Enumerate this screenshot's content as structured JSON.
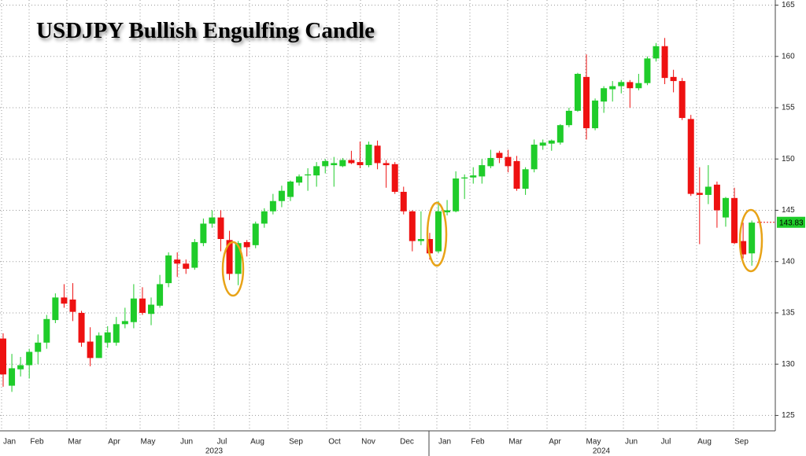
{
  "chart_data": {
    "type": "candlestick",
    "title": "USDJPY Bullish Engulfing Candle",
    "categories": [
      "Jan",
      "Feb",
      "Mar",
      "Apr",
      "May",
      "Jun",
      "Jul",
      "Aug",
      "Sep",
      "Oct",
      "Nov",
      "Dec",
      "Jan",
      "Feb",
      "Mar",
      "Apr",
      "May",
      "Jun",
      "Jul",
      "Aug",
      "Sep"
    ],
    "years": [
      "2023",
      "2024"
    ],
    "up_color": "#1fcc2a",
    "down_color": "#ee1111",
    "ylim": [
      123.5,
      165.5
    ],
    "yticks": [
      125,
      130,
      135,
      140,
      145,
      150,
      155,
      160,
      165
    ],
    "grid": true,
    "last_price": 143.83,
    "open": [
      132.5,
      127.9,
      129.5,
      129.9,
      131.2,
      132.1,
      134.3,
      136.5,
      136.3,
      135.0,
      132.2,
      130.6,
      132.1,
      132.1,
      133.9,
      134.1,
      136.4,
      134.9,
      135.7,
      137.9,
      140.2,
      139.8,
      139.4,
      141.8,
      143.7,
      144.3,
      142.1,
      138.8,
      141.9,
      141.6,
      143.7,
      144.9,
      145.9,
      146.3,
      147.7,
      148.4,
      148.4,
      149.3,
      149.4,
      149.3,
      149.9,
      149.7,
      149.4,
      151.3,
      149.6,
      149.5,
      146.8,
      144.9,
      142.0,
      142.2,
      141.0,
      144.8,
      144.9,
      148.1,
      148.2,
      148.3,
      149.3,
      150.6,
      150.2,
      149.8,
      147.1,
      149.0,
      151.3,
      151.5,
      151.6,
      153.3,
      154.7,
      158.0,
      153.0,
      155.6,
      156.8,
      157.1,
      157.5,
      156.9,
      157.4,
      159.8,
      161.0,
      158.0,
      157.6,
      153.9,
      146.7,
      146.5,
      147.5,
      144.3,
      146.2,
      142.0,
      140.8
    ],
    "high": [
      133.0,
      131.0,
      130.7,
      131.5,
      132.9,
      134.8,
      136.9,
      137.8,
      137.9,
      135.2,
      133.6,
      133.1,
      133.7,
      134.6,
      135.5,
      137.8,
      137.5,
      136.5,
      138.7,
      140.9,
      140.9,
      140.2,
      142.2,
      144.2,
      145.0,
      145.0,
      143.0,
      142.0,
      142.1,
      143.9,
      145.2,
      146.6,
      147.4,
      147.9,
      148.5,
      149.1,
      149.7,
      150.0,
      150.2,
      150.1,
      150.8,
      151.7,
      151.7,
      151.8,
      149.9,
      149.7,
      147.3,
      145.0,
      144.9,
      142.8,
      145.9,
      146.0,
      148.8,
      148.5,
      149.2,
      150.0,
      150.9,
      150.8,
      150.9,
      150.3,
      149.2,
      151.9,
      151.9,
      151.9,
      153.4,
      155.0,
      158.4,
      160.2,
      155.9,
      157.1,
      157.6,
      157.7,
      157.7,
      158.3,
      160.0,
      161.3,
      161.8,
      158.7,
      157.9,
      154.3,
      149.2,
      149.4,
      147.8,
      146.3,
      147.2,
      143.8,
      144.0
    ],
    "low": [
      127.8,
      127.3,
      128.8,
      128.6,
      130.0,
      131.5,
      134.0,
      135.5,
      134.2,
      131.7,
      129.8,
      130.6,
      131.6,
      131.8,
      133.5,
      133.5,
      134.8,
      133.8,
      135.5,
      137.5,
      138.5,
      138.8,
      139.2,
      141.5,
      143.3,
      141.0,
      138.2,
      137.7,
      140.5,
      141.3,
      143.3,
      144.6,
      145.3,
      145.9,
      147.4,
      146.9,
      147.3,
      148.6,
      147.3,
      149.2,
      149.5,
      149.1,
      149.2,
      149.0,
      147.2,
      146.6,
      144.6,
      141.0,
      141.6,
      140.2,
      140.8,
      144.5,
      144.8,
      146.1,
      147.6,
      147.6,
      149.1,
      149.6,
      148.7,
      146.9,
      146.5,
      148.7,
      150.9,
      150.8,
      151.4,
      153.1,
      154.6,
      151.9,
      152.8,
      154.5,
      155.6,
      156.4,
      155.0,
      156.7,
      157.2,
      159.5,
      157.3,
      156.5,
      153.8,
      146.4,
      141.7,
      145.6,
      143.3,
      143.4,
      141.7,
      140.3,
      139.6
    ],
    "close": [
      129.0,
      129.6,
      129.9,
      131.2,
      132.1,
      134.4,
      136.5,
      135.9,
      135.1,
      132.1,
      130.6,
      132.8,
      133.1,
      133.9,
      134.2,
      136.4,
      135.0,
      135.8,
      137.8,
      140.6,
      139.8,
      139.3,
      141.9,
      143.7,
      144.3,
      142.2,
      138.8,
      141.8,
      141.4,
      143.7,
      144.9,
      145.9,
      146.9,
      147.8,
      148.3,
      148.5,
      149.3,
      149.8,
      149.6,
      149.9,
      149.6,
      149.4,
      151.4,
      149.6,
      149.4,
      146.8,
      144.9,
      142.0,
      142.2,
      140.8,
      144.9,
      145.0,
      148.1,
      148.2,
      148.4,
      149.4,
      150.1,
      150.1,
      149.3,
      147.1,
      149.0,
      151.4,
      151.6,
      151.8,
      153.3,
      154.7,
      158.3,
      153.0,
      155.7,
      156.9,
      157.1,
      157.5,
      156.9,
      157.4,
      159.8,
      161.0,
      157.9,
      157.6,
      154.0,
      146.6,
      146.5,
      147.3,
      145.0,
      146.2,
      141.8,
      140.7,
      143.8
    ]
  }
}
